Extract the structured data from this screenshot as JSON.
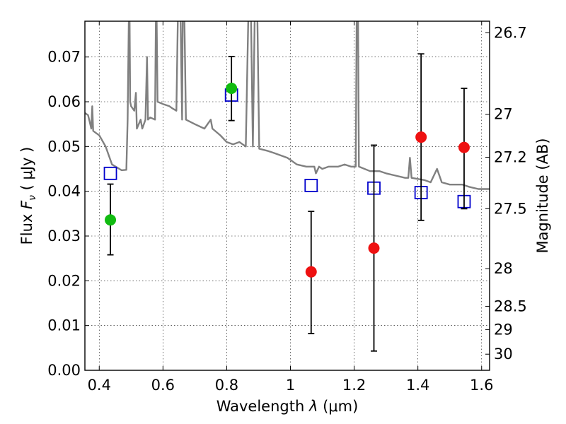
{
  "chart_data": {
    "type": "scatter",
    "xlabel": "Wavelength",
    "xlabel_symbol": "λ",
    "xlabel_unit": "(μm)",
    "ylabel": "Flux",
    "ylabel_symbol": "F",
    "ylabel_subscript": "ν",
    "ylabel_unit": "( μJy )",
    "y2label": "Magnitude (AB)",
    "xlim": [
      0.355,
      1.625
    ],
    "ylim": [
      0.0,
      0.078
    ],
    "grid": true,
    "x_ticks": [
      0.4,
      0.6,
      0.8,
      1.0,
      1.2,
      1.4,
      1.6
    ],
    "x_tick_labels": [
      "0.4",
      "0.6",
      "0.8",
      "1",
      "1.2",
      "1.4",
      "1.6"
    ],
    "y_ticks": [
      0.0,
      0.01,
      0.02,
      0.03,
      0.04,
      0.05,
      0.06,
      0.07
    ],
    "y_tick_labels": [
      "0.00",
      "0.01",
      "0.02",
      "0.03",
      "0.04",
      "0.05",
      "0.06",
      "0.07"
    ],
    "y2_ticks": [
      {
        "label": "26.7",
        "flux": 0.0754
      },
      {
        "label": "27",
        "flux": 0.0572
      },
      {
        "label": "27.2",
        "flux": 0.0476
      },
      {
        "label": "27.5",
        "flux": 0.0361
      },
      {
        "label": "28",
        "flux": 0.0227
      },
      {
        "label": "28.5",
        "flux": 0.0143
      },
      {
        "label": "29",
        "flux": 0.0091
      },
      {
        "label": "30",
        "flux": 0.0036
      }
    ],
    "series": [
      {
        "kind": "model_spectrum",
        "color": "#808080",
        "points": [
          [
            0.355,
            0.0575
          ],
          [
            0.365,
            0.057
          ],
          [
            0.37,
            0.0555
          ],
          [
            0.375,
            0.054
          ],
          [
            0.378,
            0.059
          ],
          [
            0.381,
            0.0535
          ],
          [
            0.39,
            0.053
          ],
          [
            0.4,
            0.0525
          ],
          [
            0.42,
            0.05
          ],
          [
            0.43,
            0.048
          ],
          [
            0.44,
            0.046
          ],
          [
            0.47,
            0.0447
          ],
          [
            0.485,
            0.0448
          ],
          [
            0.489,
            0.056
          ],
          [
            0.493,
            0.08
          ],
          [
            0.495,
            0.08
          ],
          [
            0.497,
            0.06
          ],
          [
            0.5,
            0.059
          ],
          [
            0.51,
            0.058
          ],
          [
            0.515,
            0.062
          ],
          [
            0.518,
            0.054
          ],
          [
            0.53,
            0.056
          ],
          [
            0.535,
            0.054
          ],
          [
            0.545,
            0.056
          ],
          [
            0.55,
            0.07
          ],
          [
            0.553,
            0.056
          ],
          [
            0.56,
            0.0565
          ],
          [
            0.575,
            0.056
          ],
          [
            0.578,
            0.08
          ],
          [
            0.58,
            0.08
          ],
          [
            0.583,
            0.06
          ],
          [
            0.6,
            0.0595
          ],
          [
            0.62,
            0.059
          ],
          [
            0.63,
            0.0585
          ],
          [
            0.642,
            0.058
          ],
          [
            0.647,
            0.08
          ],
          [
            0.655,
            0.08
          ],
          [
            0.66,
            0.056
          ],
          [
            0.662,
            0.08
          ],
          [
            0.667,
            0.08
          ],
          [
            0.672,
            0.056
          ],
          [
            0.7,
            0.055
          ],
          [
            0.73,
            0.054
          ],
          [
            0.75,
            0.056
          ],
          [
            0.755,
            0.054
          ],
          [
            0.78,
            0.0525
          ],
          [
            0.8,
            0.051
          ],
          [
            0.82,
            0.0505
          ],
          [
            0.84,
            0.051
          ],
          [
            0.85,
            0.0505
          ],
          [
            0.86,
            0.05
          ],
          [
            0.868,
            0.08
          ],
          [
            0.876,
            0.08
          ],
          [
            0.882,
            0.05
          ],
          [
            0.888,
            0.08
          ],
          [
            0.896,
            0.08
          ],
          [
            0.902,
            0.0495
          ],
          [
            0.93,
            0.049
          ],
          [
            0.95,
            0.0485
          ],
          [
            0.97,
            0.048
          ],
          [
            0.99,
            0.0475
          ],
          [
            1.0,
            0.047
          ],
          [
            1.02,
            0.046
          ],
          [
            1.05,
            0.0455
          ],
          [
            1.075,
            0.0455
          ],
          [
            1.08,
            0.044
          ],
          [
            1.09,
            0.0455
          ],
          [
            1.1,
            0.045
          ],
          [
            1.12,
            0.0455
          ],
          [
            1.15,
            0.0455
          ],
          [
            1.17,
            0.046
          ],
          [
            1.19,
            0.0455
          ],
          [
            1.205,
            0.0455
          ],
          [
            1.208,
            0.08
          ],
          [
            1.212,
            0.08
          ],
          [
            1.215,
            0.0455
          ],
          [
            1.25,
            0.0445
          ],
          [
            1.28,
            0.0445
          ],
          [
            1.3,
            0.044
          ],
          [
            1.33,
            0.0435
          ],
          [
            1.36,
            0.043
          ],
          [
            1.37,
            0.043
          ],
          [
            1.375,
            0.0475
          ],
          [
            1.38,
            0.043
          ],
          [
            1.42,
            0.0425
          ],
          [
            1.44,
            0.042
          ],
          [
            1.46,
            0.045
          ],
          [
            1.475,
            0.042
          ],
          [
            1.5,
            0.0415
          ],
          [
            1.54,
            0.0415
          ],
          [
            1.56,
            0.041
          ],
          [
            1.59,
            0.0405
          ],
          [
            1.625,
            0.0405
          ]
        ]
      },
      {
        "kind": "model_photometry",
        "marker": "open-square",
        "color": "#0000cc",
        "x": [
          0.435,
          0.815,
          1.065,
          1.262,
          1.41,
          1.545
        ],
        "y": [
          0.044,
          0.0615,
          0.0413,
          0.0407,
          0.0397,
          0.0377
        ]
      },
      {
        "kind": "detections",
        "marker": "filled-circle",
        "color": "#11bb11",
        "x": [
          0.435,
          0.815
        ],
        "y": [
          0.0336,
          0.063
        ],
        "yerr_low": [
          0.0258,
          0.0558
        ],
        "yerr_high": [
          0.0416,
          0.0701
        ]
      },
      {
        "kind": "non_detections",
        "marker": "filled-circle",
        "color": "#ee1111",
        "x": [
          1.065,
          1.262,
          1.41,
          1.545
        ],
        "y": [
          0.022,
          0.0273,
          0.0521,
          0.0498
        ],
        "yerr_low": [
          0.0082,
          0.0043,
          0.0335,
          0.0361
        ],
        "yerr_high": [
          0.0355,
          0.0503,
          0.0707,
          0.063
        ]
      }
    ]
  }
}
